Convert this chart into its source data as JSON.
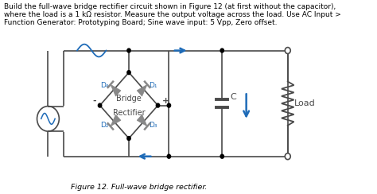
{
  "text_lines": [
    "Build the full-wave bridge rectifier circuit shown in Figure 12 (at first without the capacitor),",
    "where the load is a 1 kΩ resistor. Measure the output voltage across the load. Use AC Input >",
    "Function Generator: Prototyping Board; Sine wave input: 5 Vpp, Zero offset."
  ],
  "figure_caption": "Figure 12. Full-wave bridge rectifier.",
  "bg_color": "#ffffff",
  "line_color": "#4a4a4a",
  "blue_color": "#1e6bb8",
  "diode_color": "#888888",
  "text_color": "#000000",
  "fontsize_body": 6.5,
  "fontsize_caption": 6.8,
  "fontsize_label": 6.5,
  "fontsize_sign": 8.0
}
